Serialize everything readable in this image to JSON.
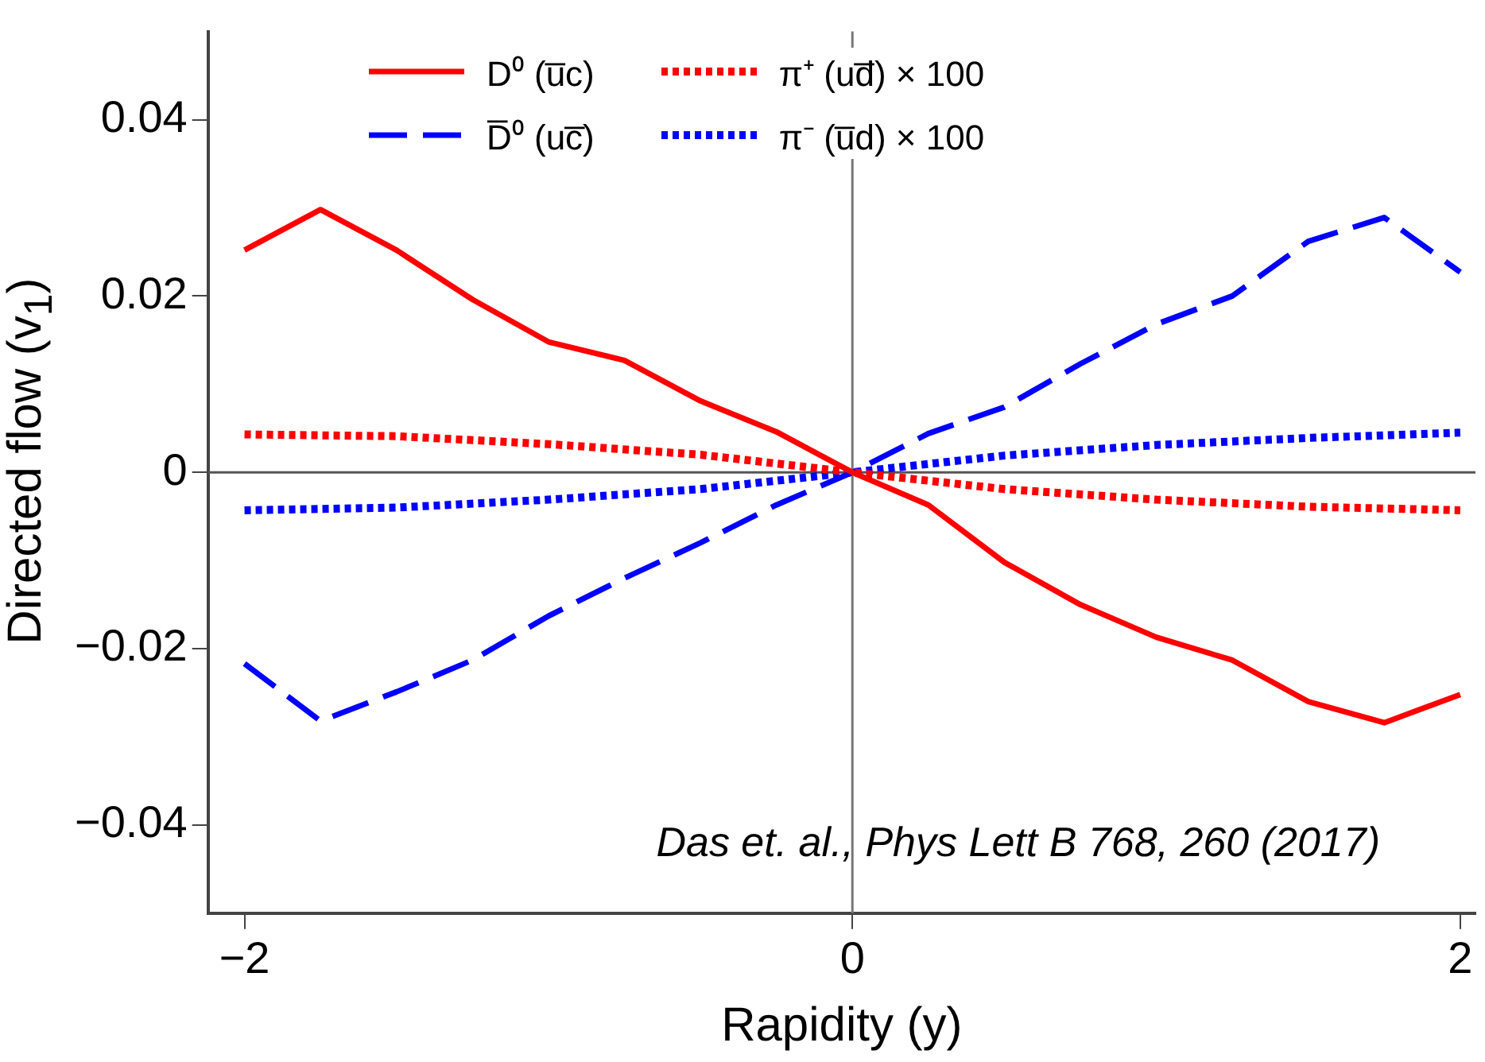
{
  "chart_data": {
    "type": "line",
    "xlabel": "Rapidity (y)",
    "ylabel": "Directed flow (v$_{1}$)",
    "x": [
      -2,
      -1.75,
      -1.5,
      -1.25,
      -1,
      -0.75,
      -0.5,
      -0.25,
      0,
      0.25,
      0.5,
      0.75,
      1,
      1.25,
      1.5,
      1.75,
      2
    ],
    "series": [
      {
        "name": "D⁰ (u̅c)",
        "color": "#ff0000",
        "line_style": "solid",
        "values": [
          0.0252,
          0.0298,
          0.0252,
          0.0196,
          0.0148,
          0.0127,
          0.0081,
          0.0046,
          0,
          -0.0037,
          -0.0102,
          -0.015,
          -0.0187,
          -0.0213,
          -0.026,
          -0.0284,
          -0.0252
        ]
      },
      {
        "name": "D̅⁰ (uc̅)",
        "color": "#0000ff",
        "line_style": "dashed",
        "values": [
          -0.0217,
          -0.0282,
          -0.0249,
          -0.0213,
          -0.0163,
          -0.012,
          -0.008,
          -0.0037,
          0,
          0.0044,
          0.0074,
          0.0123,
          0.0168,
          0.02,
          0.0262,
          0.0289,
          0.0227
        ]
      },
      {
        "name": "π⁺ (ud̅) × 100",
        "color": "#ff0000",
        "line_style": "dotted",
        "x": [
          -2,
          -1.5,
          -1,
          -0.5,
          0,
          0.5,
          1,
          1.5,
          2
        ],
        "values": [
          0.0043,
          0.0041,
          0.0032,
          0.002,
          0,
          -0.0019,
          -0.0031,
          -0.0039,
          -0.0043
        ]
      },
      {
        "name": "π⁻ (u̅d) × 100",
        "color": "#0000ff",
        "line_style": "dotted",
        "x": [
          -2,
          -1.5,
          -1,
          -0.5,
          0,
          0.5,
          1,
          1.5,
          2
        ],
        "values": [
          -0.0043,
          -0.004,
          -0.0031,
          -0.0019,
          0,
          0.0019,
          0.0031,
          0.0039,
          0.0045
        ]
      }
    ],
    "xlim": [
      -2.12,
      2.05
    ],
    "xticks": [
      {
        "value": -2,
        "label": "−2"
      },
      0,
      2
    ],
    "ylim": [
      -0.05,
      0.05
    ],
    "yticks": [
      {
        "value": -0.04,
        "label": "−0.04"
      },
      {
        "value": -0.02,
        "label": "−0.02"
      },
      0,
      0.02,
      0.04
    ],
    "ref_lines": [
      {
        "axis": "y",
        "value": 0,
        "color": "#555555"
      },
      {
        "axis": "x",
        "value": 0,
        "color": "#777777"
      }
    ],
    "annotations": [
      "Das et. al., Phys Lett B 768, 260 (2017)"
    ],
    "legend": "top",
    "grid": false,
    "marker": "none"
  }
}
